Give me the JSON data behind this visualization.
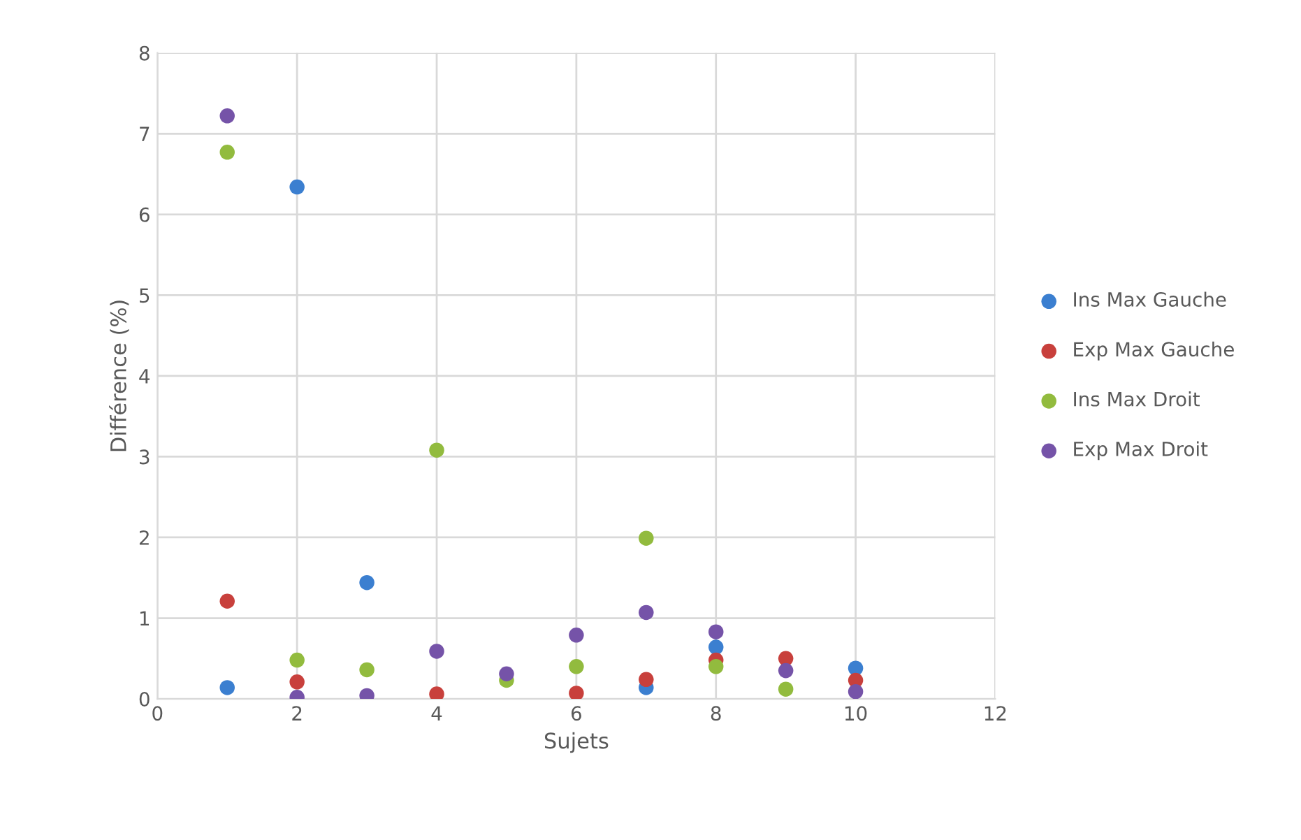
{
  "chart_data": {
    "type": "scatter",
    "xlabel": "Sujets",
    "ylabel": "Différence (%)",
    "x": [
      1,
      2,
      3,
      4,
      5,
      6,
      7,
      8,
      9,
      10
    ],
    "series": [
      {
        "name": "Ins Max Gauche",
        "color": "#3b7fd0",
        "values": [
          0.14,
          6.34,
          1.44,
          null,
          null,
          null,
          0.14,
          0.64,
          null,
          0.38
        ]
      },
      {
        "name": "Exp Max Gauche",
        "color": "#c8403c",
        "values": [
          1.21,
          0.21,
          null,
          0.06,
          null,
          0.07,
          0.24,
          0.48,
          0.5,
          0.23
        ]
      },
      {
        "name": "Ins Max Droit",
        "color": "#92bb3e",
        "values": [
          6.77,
          0.48,
          0.36,
          3.08,
          0.23,
          0.4,
          1.99,
          0.4,
          0.12,
          null
        ]
      },
      {
        "name": "Exp Max Droit",
        "color": "#7553a8",
        "values": [
          7.22,
          0.02,
          0.04,
          0.59,
          0.31,
          0.79,
          1.07,
          0.83,
          0.35,
          0.09
        ]
      }
    ],
    "xlim": [
      0,
      12
    ],
    "xticks": [
      0,
      2,
      4,
      6,
      8,
      10,
      12
    ],
    "ylim": [
      0,
      8
    ],
    "yticks": [
      0,
      1,
      2,
      3,
      4,
      5,
      6,
      7,
      8
    ],
    "grid": true,
    "legend": "right",
    "marker": "circle"
  }
}
